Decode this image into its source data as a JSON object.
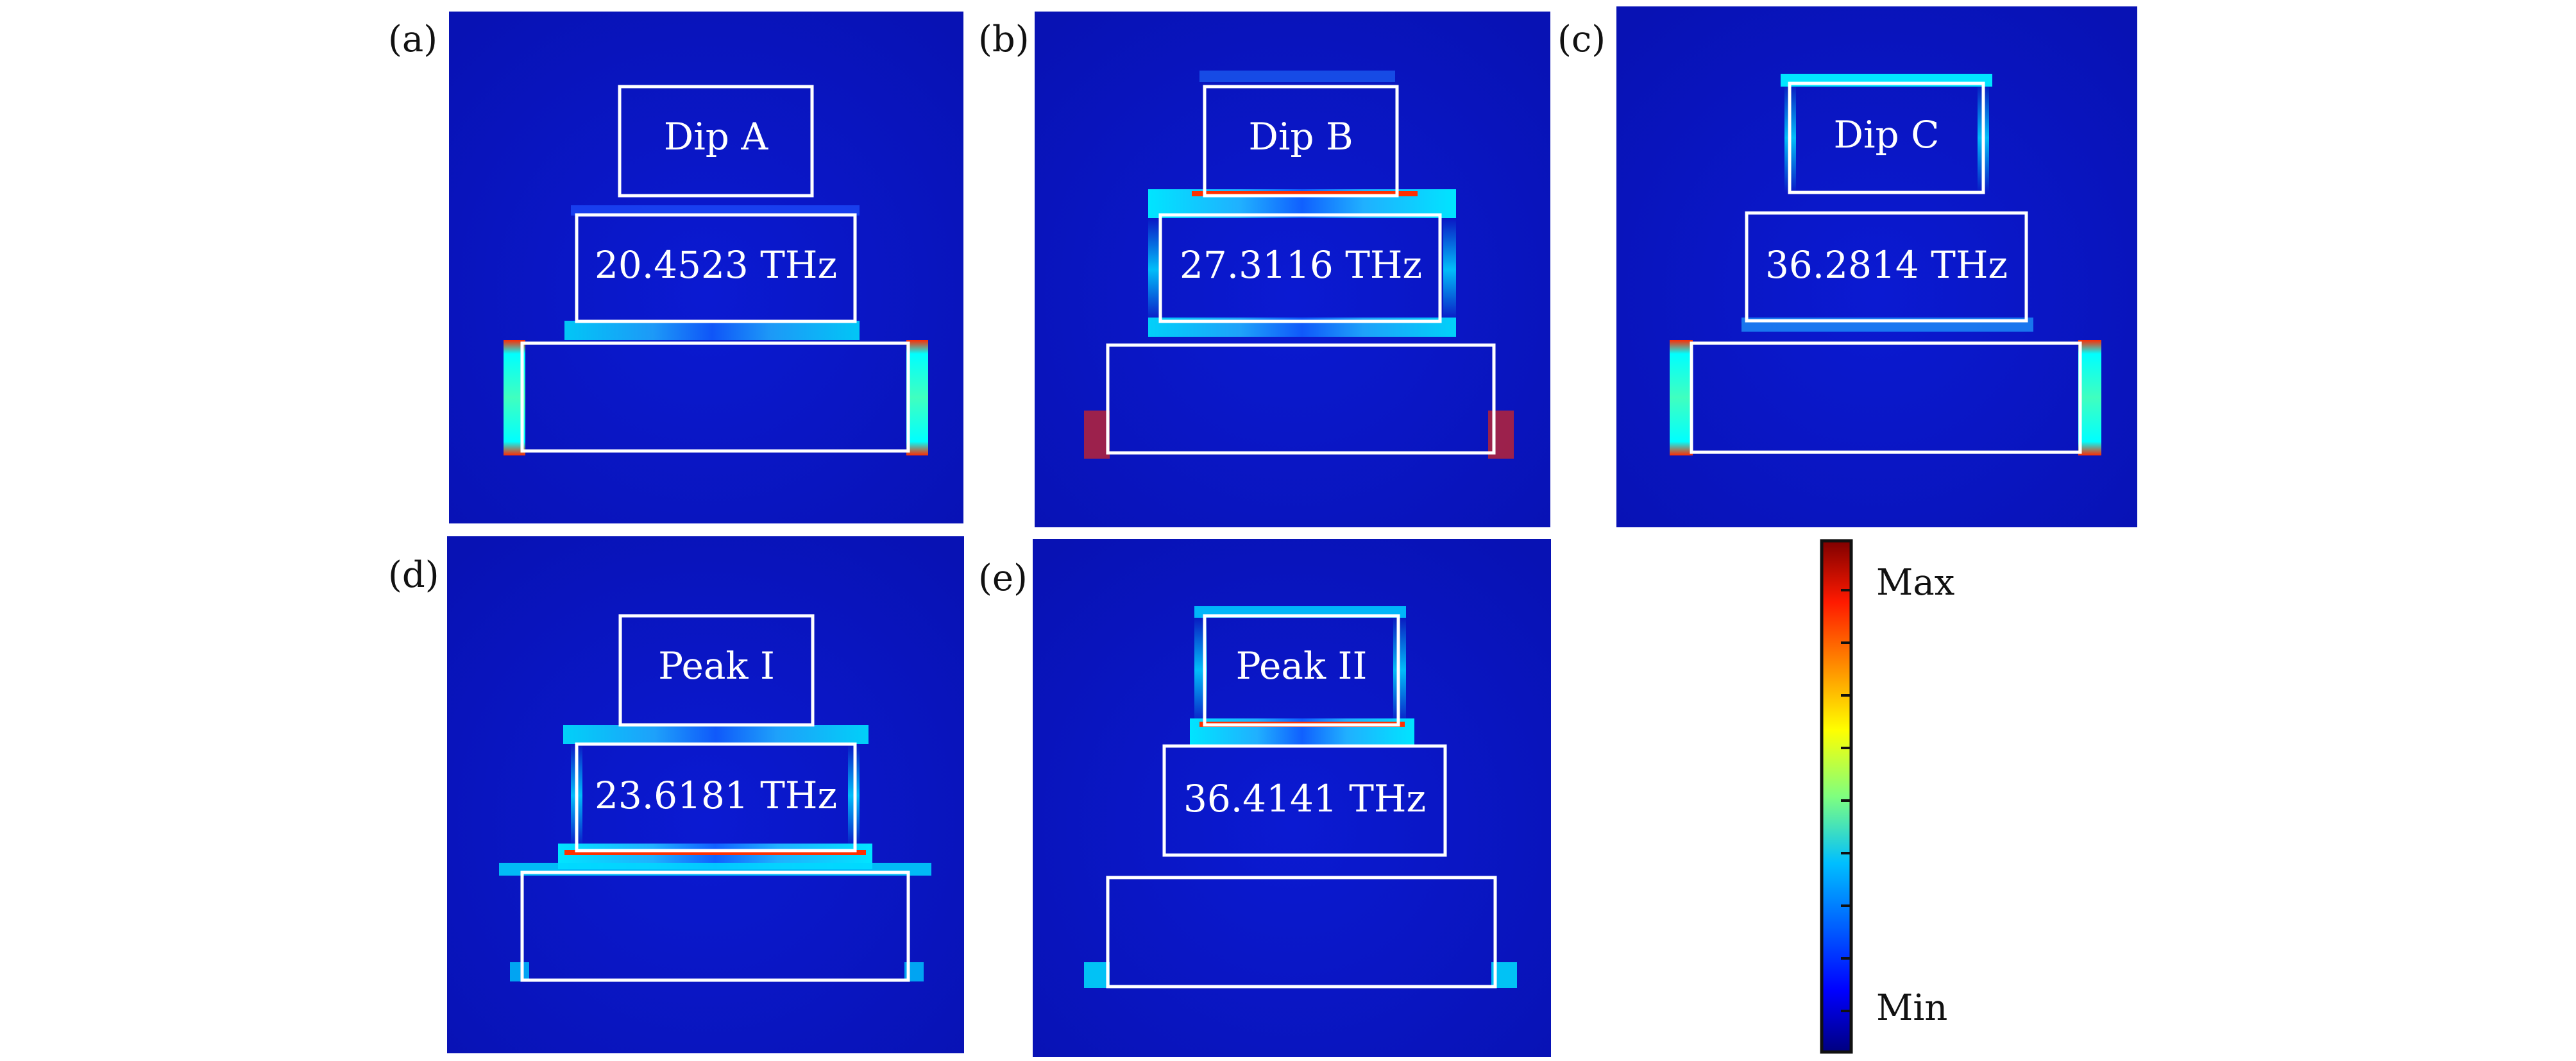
{
  "colors": {
    "field_background": "#0a14c4",
    "box_outline": "#ffffff",
    "colormap": [
      "#00007f",
      "#0000ff",
      "#007fff",
      "#00ffff",
      "#7fff7f",
      "#ffff00",
      "#ff7f00",
      "#ff0000",
      "#7f0000"
    ]
  },
  "panels": [
    {
      "label": "(a)",
      "top_text": "Dip A",
      "mid_text": "20.4523 THz"
    },
    {
      "label": "(b)",
      "top_text": "Dip B",
      "mid_text": "27.3116 THz"
    },
    {
      "label": "(c)",
      "top_text": "Dip C",
      "mid_text": "36.2814 THz"
    },
    {
      "label": "(d)",
      "top_text": "Peak I",
      "mid_text": "23.6181 THz"
    },
    {
      "label": "(e)",
      "top_text": "Peak II",
      "mid_text": "36.4141 THz"
    }
  ],
  "colorbar": {
    "max_label": "Max",
    "min_label": "Min"
  }
}
